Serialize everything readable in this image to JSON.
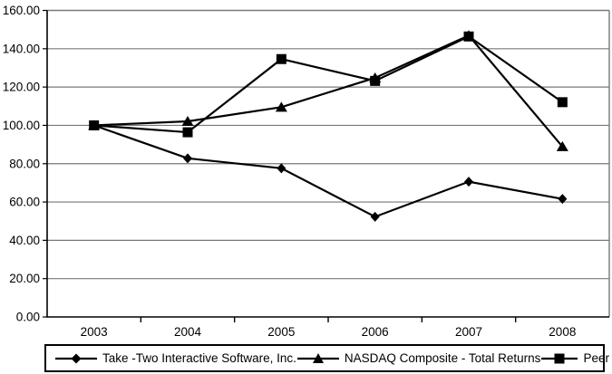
{
  "chart_data": {
    "type": "line",
    "title": "",
    "xlabel": "",
    "ylabel": "",
    "x": [
      "2003",
      "2004",
      "2005",
      "2006",
      "2007",
      "2008"
    ],
    "series": [
      {
        "name": "Take -Two Interactive Software, Inc.",
        "marker": "diamond",
        "color": "#000000",
        "values": [
          100.0,
          82.8,
          77.6,
          52.3,
          70.6,
          61.6
        ]
      },
      {
        "name": "NASDAQ Composite - Total Returns",
        "marker": "triangle",
        "color": "#000000",
        "values": [
          100.0,
          102.1,
          109.5,
          124.8,
          146.9,
          88.9
        ]
      },
      {
        "name": "Peer Group",
        "marker": "square",
        "color": "#000000",
        "values": [
          100.0,
          96.4,
          134.6,
          123.2,
          146.4,
          112.1
        ]
      }
    ],
    "ylim": [
      0,
      160
    ],
    "ytick_step": 20,
    "ytick_labels": [
      "0.00",
      "20.00",
      "40.00",
      "60.00",
      "80.00",
      "100.00",
      "120.00",
      "140.00",
      "160.00"
    ],
    "grid": true,
    "legend_position": "bottom",
    "colors": {
      "line": "#000000",
      "grid": "#787878",
      "axis": "#000000",
      "background": "#ffffff",
      "text": "#000000"
    }
  }
}
